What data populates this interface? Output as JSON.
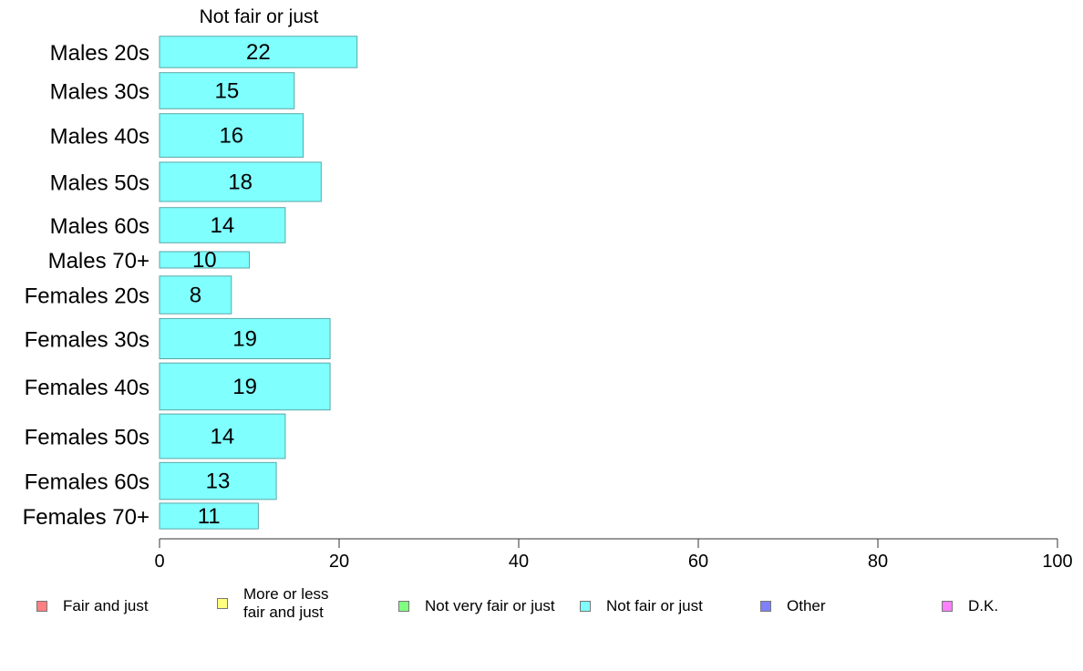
{
  "chart_data": {
    "type": "bar",
    "orientation": "horizontal",
    "title": "Not fair or just",
    "categories": [
      "Males 20s",
      "Males 30s",
      "Males 40s",
      "Males 50s",
      "Males 60s",
      "Males 70+",
      "Females 20s",
      "Females 30s",
      "Females 40s",
      "Females 50s",
      "Females 60s",
      "Females 70+"
    ],
    "series": [
      {
        "name": "Not fair or just",
        "values": [
          22,
          15,
          16,
          18,
          14,
          10,
          8,
          19,
          19,
          14,
          13,
          11
        ],
        "color": "#80ffff"
      }
    ],
    "xlim": [
      0,
      100
    ],
    "xticks": [
      "0",
      "20",
      "40",
      "60",
      "80",
      "100"
    ],
    "grid": false,
    "legend_placement": "bottom",
    "legend": [
      {
        "label": "Fair and just",
        "color": "#ff8080"
      },
      {
        "label": "More or less fair and just",
        "color": "#ffff80"
      },
      {
        "label": "Not very fair or just",
        "color": "#80ff80"
      },
      {
        "label": "Not fair or just",
        "color": "#80ffff"
      },
      {
        "label": "Other",
        "color": "#8080ff"
      },
      {
        "label": "D.K.",
        "color": "#ff80ff"
      }
    ]
  }
}
